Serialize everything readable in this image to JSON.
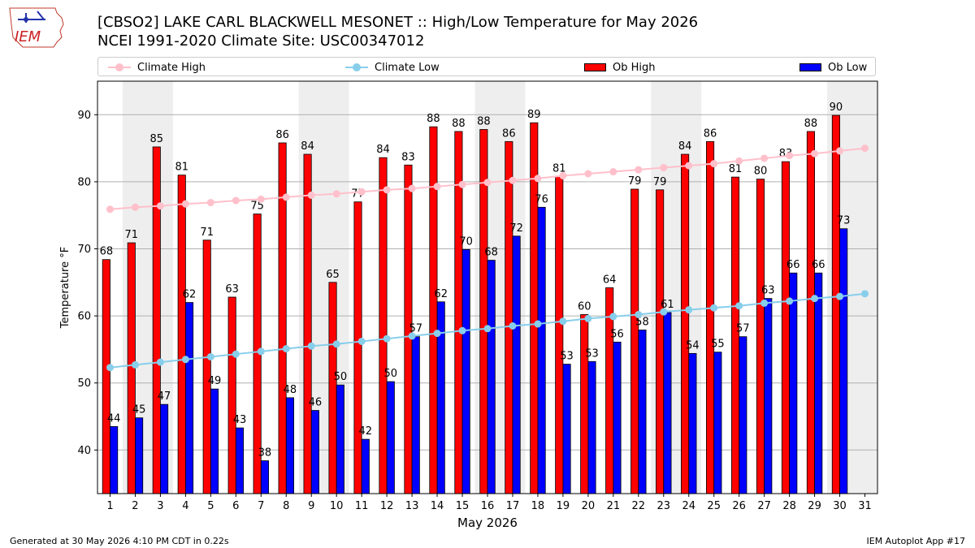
{
  "header": {
    "title_line1": "[CBSO2] LAKE CARL BLACKWELL MESONET :: High/Low Temperature for May 2026",
    "title_line2": "NCEI 1991-2020 Climate Site: USC00347012",
    "logo_text": "IEM"
  },
  "footer": {
    "generated": "Generated at 30 May 2026 4:10 PM CDT in 0.22s",
    "app": "IEM Autoplot App #17"
  },
  "legend": {
    "placement": "top",
    "items": [
      {
        "label": "Climate High",
        "color": "#ffc0cb"
      },
      {
        "label": "Climate Low",
        "color": "#87ceeb"
      },
      {
        "label": "Ob High",
        "color": "#ff0000"
      },
      {
        "label": "Ob Low",
        "color": "#0000ff"
      }
    ]
  },
  "chart_data": {
    "type": "bar",
    "title": "[CBSO2] LAKE CARL BLACKWELL MESONET :: High/Low Temperature for May 2026",
    "subtitle": "NCEI 1991-2020 Climate Site: USC00347012",
    "xlabel": "May 2026",
    "ylabel": "Temperature °F",
    "ylim": [
      33.5,
      95
    ],
    "xlim": [
      0.5,
      31.5
    ],
    "yticks": [
      40,
      50,
      60,
      70,
      80,
      90
    ],
    "grid": "horizontal",
    "weekend_bands": [
      [
        1.5,
        3.5
      ],
      [
        8.5,
        10.5
      ],
      [
        15.5,
        17.5
      ],
      [
        22.5,
        24.5
      ],
      [
        29.5,
        31.5
      ]
    ],
    "categories": [
      "1",
      "2",
      "3",
      "4",
      "5",
      "6",
      "7",
      "8",
      "9",
      "10",
      "11",
      "12",
      "13",
      "14",
      "15",
      "16",
      "17",
      "18",
      "19",
      "20",
      "21",
      "22",
      "23",
      "24",
      "25",
      "26",
      "27",
      "28",
      "29",
      "30",
      "31"
    ],
    "series": [
      {
        "name": "Ob High",
        "kind": "bar",
        "color": "#ff0000",
        "values": [
          68,
          71,
          85,
          81,
          71,
          63,
          75,
          86,
          84,
          65,
          77,
          84,
          83,
          88,
          88,
          88,
          86,
          89,
          81,
          60,
          64,
          79,
          79,
          84,
          86,
          81,
          80,
          83,
          88,
          90,
          null
        ],
        "plot_values": [
          68.4,
          70.9,
          85.2,
          81.0,
          71.3,
          62.8,
          75.2,
          85.8,
          84.1,
          65.0,
          77.0,
          83.6,
          82.5,
          88.2,
          87.5,
          87.8,
          86.0,
          88.8,
          80.8,
          60.2,
          64.2,
          78.9,
          78.8,
          84.1,
          86.0,
          80.7,
          80.4,
          83.0,
          87.5,
          89.9,
          null
        ]
      },
      {
        "name": "Ob Low",
        "kind": "bar",
        "color": "#0000ff",
        "values": [
          44,
          45,
          47,
          62,
          49,
          43,
          38,
          48,
          46,
          50,
          42,
          50,
          57,
          62,
          70,
          68,
          72,
          76,
          53,
          53,
          56,
          58,
          61,
          54,
          55,
          57,
          63,
          66,
          66,
          73,
          null
        ],
        "plot_values": [
          43.5,
          44.8,
          46.8,
          62.0,
          49.1,
          43.3,
          38.4,
          47.8,
          45.9,
          49.7,
          41.6,
          50.2,
          56.9,
          62.1,
          69.9,
          68.3,
          71.9,
          76.2,
          52.8,
          53.2,
          56.1,
          57.9,
          60.5,
          54.4,
          54.6,
          56.9,
          62.6,
          66.4,
          66.4,
          73.0,
          null
        ]
      },
      {
        "name": "Climate High",
        "kind": "line",
        "color": "#ffc0cb",
        "values": [
          75.9,
          76.2,
          76.4,
          76.7,
          76.9,
          77.2,
          77.4,
          77.7,
          78.0,
          78.2,
          78.5,
          78.8,
          79.0,
          79.3,
          79.6,
          79.9,
          80.2,
          80.5,
          80.9,
          81.2,
          81.5,
          81.8,
          82.1,
          82.4,
          82.7,
          83.1,
          83.5,
          83.9,
          84.2,
          84.6,
          85.0
        ]
      },
      {
        "name": "Climate Low",
        "kind": "line",
        "color": "#87ceeb",
        "values": [
          52.3,
          52.7,
          53.1,
          53.5,
          53.9,
          54.3,
          54.7,
          55.1,
          55.5,
          55.8,
          56.2,
          56.6,
          57.0,
          57.4,
          57.8,
          58.1,
          58.5,
          58.8,
          59.2,
          59.6,
          59.9,
          60.2,
          60.6,
          60.9,
          61.2,
          61.5,
          61.9,
          62.2,
          62.6,
          62.9,
          63.3
        ]
      }
    ]
  }
}
